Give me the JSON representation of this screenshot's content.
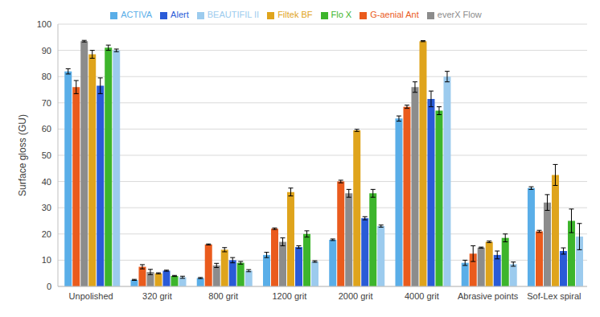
{
  "chart_data": {
    "type": "bar",
    "y_label": "Surface gloss (GU)",
    "categories": [
      "Unpolished",
      "320 grit",
      "800 grit",
      "1200 grit",
      "2000 grit",
      "4000 grit",
      "Abrasive points",
      "Sof-Lex spiral"
    ],
    "series": [
      {
        "name": "ACTIVA",
        "color": "#5aaee8",
        "values": [
          82,
          2.5,
          3.2,
          12,
          17.8,
          64,
          9,
          37.5
        ],
        "errors": [
          1,
          0.2,
          0.2,
          1,
          0.3,
          1,
          1,
          0.5
        ]
      },
      {
        "name": "G-aenial Ant",
        "color": "#ea5b1d",
        "values": [
          76,
          7.5,
          16,
          22,
          40,
          68.5,
          12.5,
          21
        ],
        "errors": [
          2.5,
          0.8,
          0.2,
          0.3,
          0.5,
          0.6,
          3,
          0.4
        ]
      },
      {
        "name": "everX Flow",
        "color": "#8c8c8c",
        "values": [
          93.5,
          5.5,
          8,
          17,
          35.5,
          76,
          14.8,
          32
        ],
        "errors": [
          0.3,
          1,
          0.8,
          1.5,
          1.5,
          2,
          0.2,
          3
        ]
      },
      {
        "name": "Filtek BF",
        "color": "#dfa41c",
        "values": [
          88.5,
          5,
          14,
          36,
          59.5,
          93.5,
          17,
          42.5
        ],
        "errors": [
          1.5,
          0.2,
          0.8,
          1.5,
          0.4,
          0.2,
          0.3,
          4
        ]
      },
      {
        "name": "Alert",
        "color": "#2a5bd7",
        "values": [
          76.5,
          6,
          10,
          15,
          26,
          71.5,
          12,
          13.5
        ],
        "errors": [
          3,
          0.2,
          1,
          0.5,
          0.6,
          3,
          1.5,
          1.2
        ]
      },
      {
        "name": "Flo X",
        "color": "#3db52c",
        "values": [
          91,
          4,
          9,
          20,
          35.5,
          67,
          18.5,
          25
        ],
        "errors": [
          1,
          0.2,
          0.5,
          1.2,
          1.5,
          1.5,
          1.5,
          4.5
        ]
      },
      {
        "name": "BEAUTIFIL II",
        "color": "#9ccbee",
        "values": [
          90,
          3.5,
          6,
          9.5,
          23,
          80,
          8.5,
          19
        ],
        "errors": [
          0.5,
          0.4,
          0.4,
          0.3,
          0.4,
          2,
          0.8,
          5
        ]
      }
    ],
    "ylim": [
      0,
      100
    ],
    "yticks": [
      0,
      10,
      20,
      30,
      40,
      50,
      60,
      70,
      80,
      90,
      100
    ],
    "grid": true,
    "legend": "top"
  }
}
